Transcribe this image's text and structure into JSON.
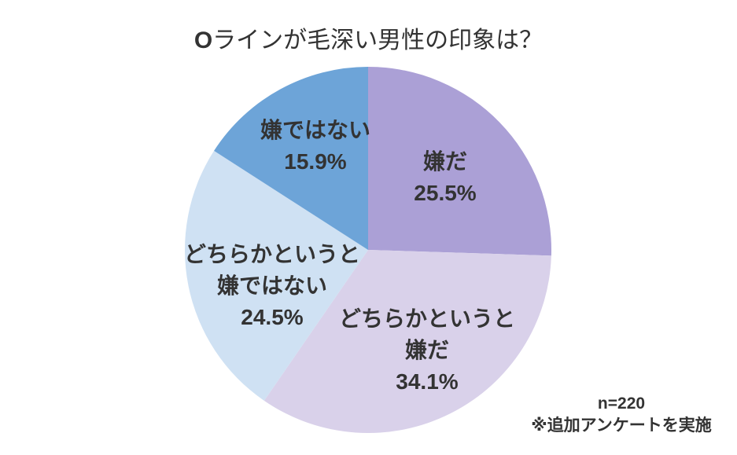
{
  "page": {
    "background_color": "#ffffff",
    "text_color": "#333333"
  },
  "title": {
    "prefix": "O",
    "rest": "ラインが毛深い男性の印象は？"
  },
  "footnote": {
    "line1": "n=220",
    "line2": "※追加アンケートを実施"
  },
  "chart_data": {
    "type": "pie",
    "title": "Oラインが毛深い男性の印象は？",
    "start_angle": "top",
    "direction": "clockwise",
    "unit": "%",
    "sample_size_note": "n=220",
    "survey_note": "※追加アンケートを実施",
    "categories": [
      "嫌だ",
      "どちらかというと嫌だ",
      "どちらかというと嫌ではない",
      "嫌ではない"
    ],
    "values": [
      25.5,
      34.1,
      24.5,
      15.9
    ],
    "slices": [
      {
        "value": 25.5,
        "pct_label": "25.5%",
        "color": "#aba0d6",
        "label_lines": [
          "嫌だ"
        ]
      },
      {
        "value": 34.1,
        "pct_label": "34.1%",
        "color": "#d9d1ea",
        "label_lines": [
          "どちらかというと",
          "嫌だ"
        ]
      },
      {
        "value": 24.5,
        "pct_label": "24.5%",
        "color": "#cfe1f3",
        "label_lines": [
          "どちらかというと",
          "嫌ではない"
        ]
      },
      {
        "value": 15.9,
        "pct_label": "15.9%",
        "color": "#6da4d8",
        "label_lines": [
          "嫌ではない"
        ]
      }
    ]
  }
}
